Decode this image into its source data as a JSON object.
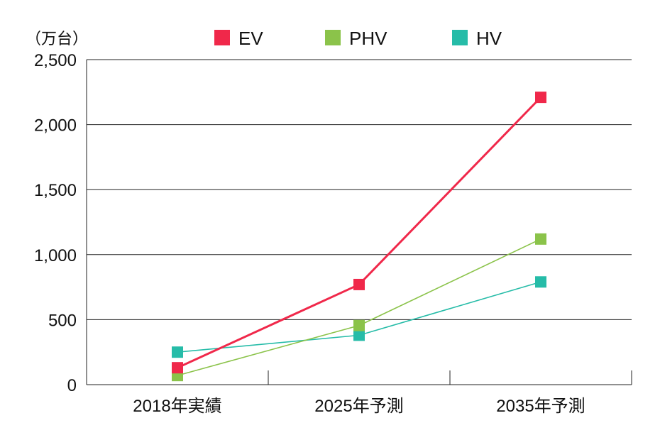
{
  "chart_data": {
    "type": "line",
    "unit_label": "（万台）",
    "categories": [
      "2018年実績",
      "2025年予測",
      "2035年予測"
    ],
    "ylim": [
      0,
      2500
    ],
    "yticks": [
      0,
      500,
      1000,
      1500,
      2000,
      2500
    ],
    "ytick_labels": [
      "0",
      "500",
      "1,000",
      "1,500",
      "2,000",
      "2,500"
    ],
    "grid": true,
    "legend_position": "top",
    "series": [
      {
        "name": "EV",
        "color": "#F0284A",
        "values": [
          130,
          770,
          2210
        ]
      },
      {
        "name": "PHV",
        "color": "#8BC34A",
        "values": [
          70,
          455,
          1120
        ]
      },
      {
        "name": "HV",
        "color": "#26BCA8",
        "values": [
          250,
          380,
          790
        ]
      }
    ]
  }
}
